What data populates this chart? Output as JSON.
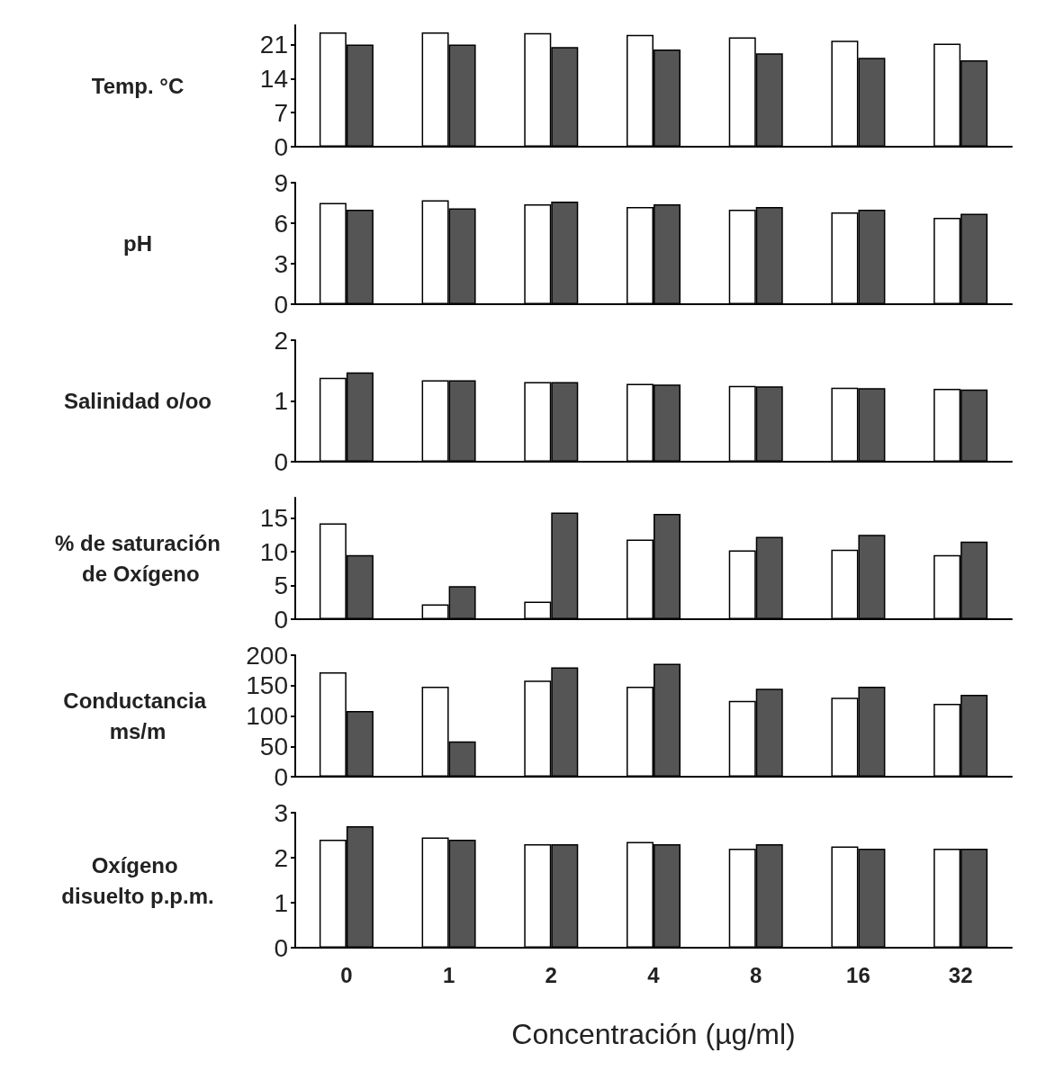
{
  "chart_data": [
    {
      "type": "bar",
      "ylabel": "Temp. °C",
      "categories": [
        "0",
        "1",
        "2",
        "4",
        "8",
        "16",
        "32"
      ],
      "series": [
        {
          "color": "#ffffff",
          "values": [
            23.5,
            23.5,
            23.4,
            23,
            22.5,
            21.8,
            21.2
          ]
        },
        {
          "color": "#555555",
          "values": [
            21,
            21,
            20.5,
            20,
            19.2,
            18.3,
            17.8
          ]
        }
      ],
      "ylim": [
        0,
        25
      ],
      "yticks": [
        0,
        7,
        14,
        21
      ],
      "tick_labels": "y",
      "grid": false
    },
    {
      "type": "bar",
      "ylabel": "pH",
      "categories": [
        "0",
        "1",
        "2",
        "4",
        "8",
        "16",
        "32"
      ],
      "series": [
        {
          "color": "#ffffff",
          "values": [
            7.5,
            7.7,
            7.4,
            7.2,
            7.0,
            6.8,
            6.4
          ]
        },
        {
          "color": "#555555",
          "values": [
            7.0,
            7.1,
            7.6,
            7.4,
            7.2,
            7.0,
            6.7
          ]
        }
      ],
      "ylim": [
        0,
        9
      ],
      "yticks": [
        0,
        3,
        6,
        9
      ],
      "tick_labels": "y",
      "grid": false
    },
    {
      "type": "bar",
      "ylabel": "Salinidad o/oo",
      "categories": [
        "0",
        "1",
        "2",
        "4",
        "8",
        "16",
        "32"
      ],
      "series": [
        {
          "color": "#ffffff",
          "values": [
            1.38,
            1.34,
            1.31,
            1.28,
            1.25,
            1.22,
            1.2
          ]
        },
        {
          "color": "#555555",
          "values": [
            1.47,
            1.34,
            1.31,
            1.27,
            1.24,
            1.21,
            1.19
          ]
        }
      ],
      "ylim": [
        0,
        2
      ],
      "yticks": [
        0,
        1,
        2
      ],
      "tick_labels": "y",
      "grid": false
    },
    {
      "type": "bar",
      "ylabel": "% de saturación de Oxígeno",
      "categories": [
        "0",
        "1",
        "2",
        "4",
        "8",
        "16",
        "32"
      ],
      "series": [
        {
          "color": "#ffffff",
          "values": [
            14.2,
            2.2,
            2.6,
            11.8,
            10.2,
            10.3,
            9.5
          ]
        },
        {
          "color": "#555555",
          "values": [
            9.5,
            4.9,
            15.8,
            15.6,
            12.2,
            12.5,
            11.5
          ]
        }
      ],
      "ylim": [
        0,
        18
      ],
      "yticks": [
        0,
        5,
        10,
        15
      ],
      "tick_labels": "y",
      "grid": false
    },
    {
      "type": "bar",
      "ylabel": "Conductancia ms/m",
      "categories": [
        "0",
        "1",
        "2",
        "4",
        "8",
        "16",
        "32"
      ],
      "series": [
        {
          "color": "#ffffff",
          "values": [
            172,
            148,
            158,
            148,
            125,
            130,
            120
          ]
        },
        {
          "color": "#555555",
          "values": [
            108,
            58,
            180,
            186,
            145,
            148,
            135
          ]
        }
      ],
      "ylim": [
        0,
        200
      ],
      "yticks": [
        0,
        50,
        100,
        150,
        200
      ],
      "tick_labels": "y",
      "grid": false
    },
    {
      "type": "bar",
      "ylabel": "Oxígeno disuelto p.p.m.",
      "xlabel": "Concentración (µg/ml)",
      "categories": [
        "0",
        "1",
        "2",
        "4",
        "8",
        "16",
        "32"
      ],
      "series": [
        {
          "color": "#ffffff",
          "values": [
            2.4,
            2.45,
            2.3,
            2.35,
            2.2,
            2.25,
            2.2
          ]
        },
        {
          "color": "#555555",
          "values": [
            2.7,
            2.4,
            2.3,
            2.3,
            2.3,
            2.2,
            2.2
          ]
        }
      ],
      "ylim": [
        0,
        3
      ],
      "yticks": [
        0,
        1,
        2,
        3
      ],
      "grid": false
    }
  ]
}
